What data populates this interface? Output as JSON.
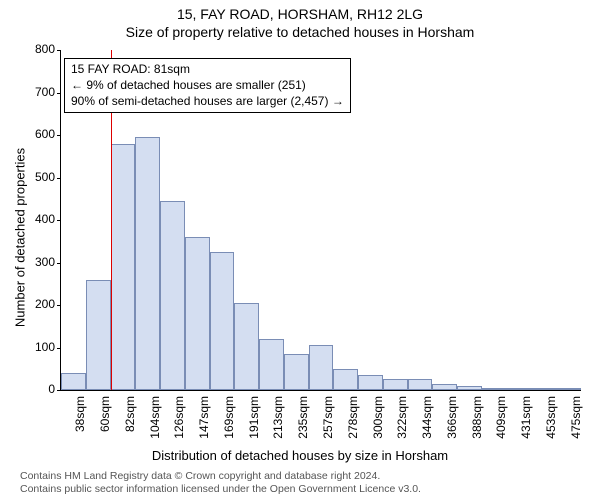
{
  "title_line1": "15, FAY ROAD, HORSHAM, RH12 2LG",
  "title_line2": "Size of property relative to detached houses in Horsham",
  "y_axis_label": "Number of detached properties",
  "x_axis_label": "Distribution of detached houses by size in Horsham",
  "attribution_line1": "Contains HM Land Registry data © Crown copyright and database right 2024.",
  "attribution_line2": "Contains public sector information licensed under the Open Government Licence v3.0.",
  "chart": {
    "type": "histogram",
    "ylim": [
      0,
      800
    ],
    "ytick_step": 100,
    "yticks": [
      0,
      100,
      200,
      300,
      400,
      500,
      600,
      700,
      800
    ],
    "xtick_labels": [
      "38sqm",
      "60sqm",
      "82sqm",
      "104sqm",
      "126sqm",
      "147sqm",
      "169sqm",
      "191sqm",
      "213sqm",
      "235sqm",
      "257sqm",
      "278sqm",
      "300sqm",
      "322sqm",
      "344sqm",
      "366sqm",
      "388sqm",
      "409sqm",
      "431sqm",
      "453sqm",
      "475sqm"
    ],
    "values": [
      40,
      260,
      580,
      595,
      445,
      360,
      325,
      205,
      120,
      85,
      105,
      50,
      35,
      25,
      25,
      15,
      10,
      5,
      5,
      5,
      5
    ],
    "bar_fill": "#d4def1",
    "bar_stroke": "#7a8db5",
    "vline_color": "#dd0000",
    "vline_bin_index": 2,
    "background": "#ffffff",
    "axis_color": "#000000"
  },
  "annotation": {
    "line1": "15 FAY ROAD: 81sqm",
    "line2": "← 9% of detached houses are smaller (251)",
    "line3": "90% of semi-detached houses are larger (2,457) →"
  }
}
